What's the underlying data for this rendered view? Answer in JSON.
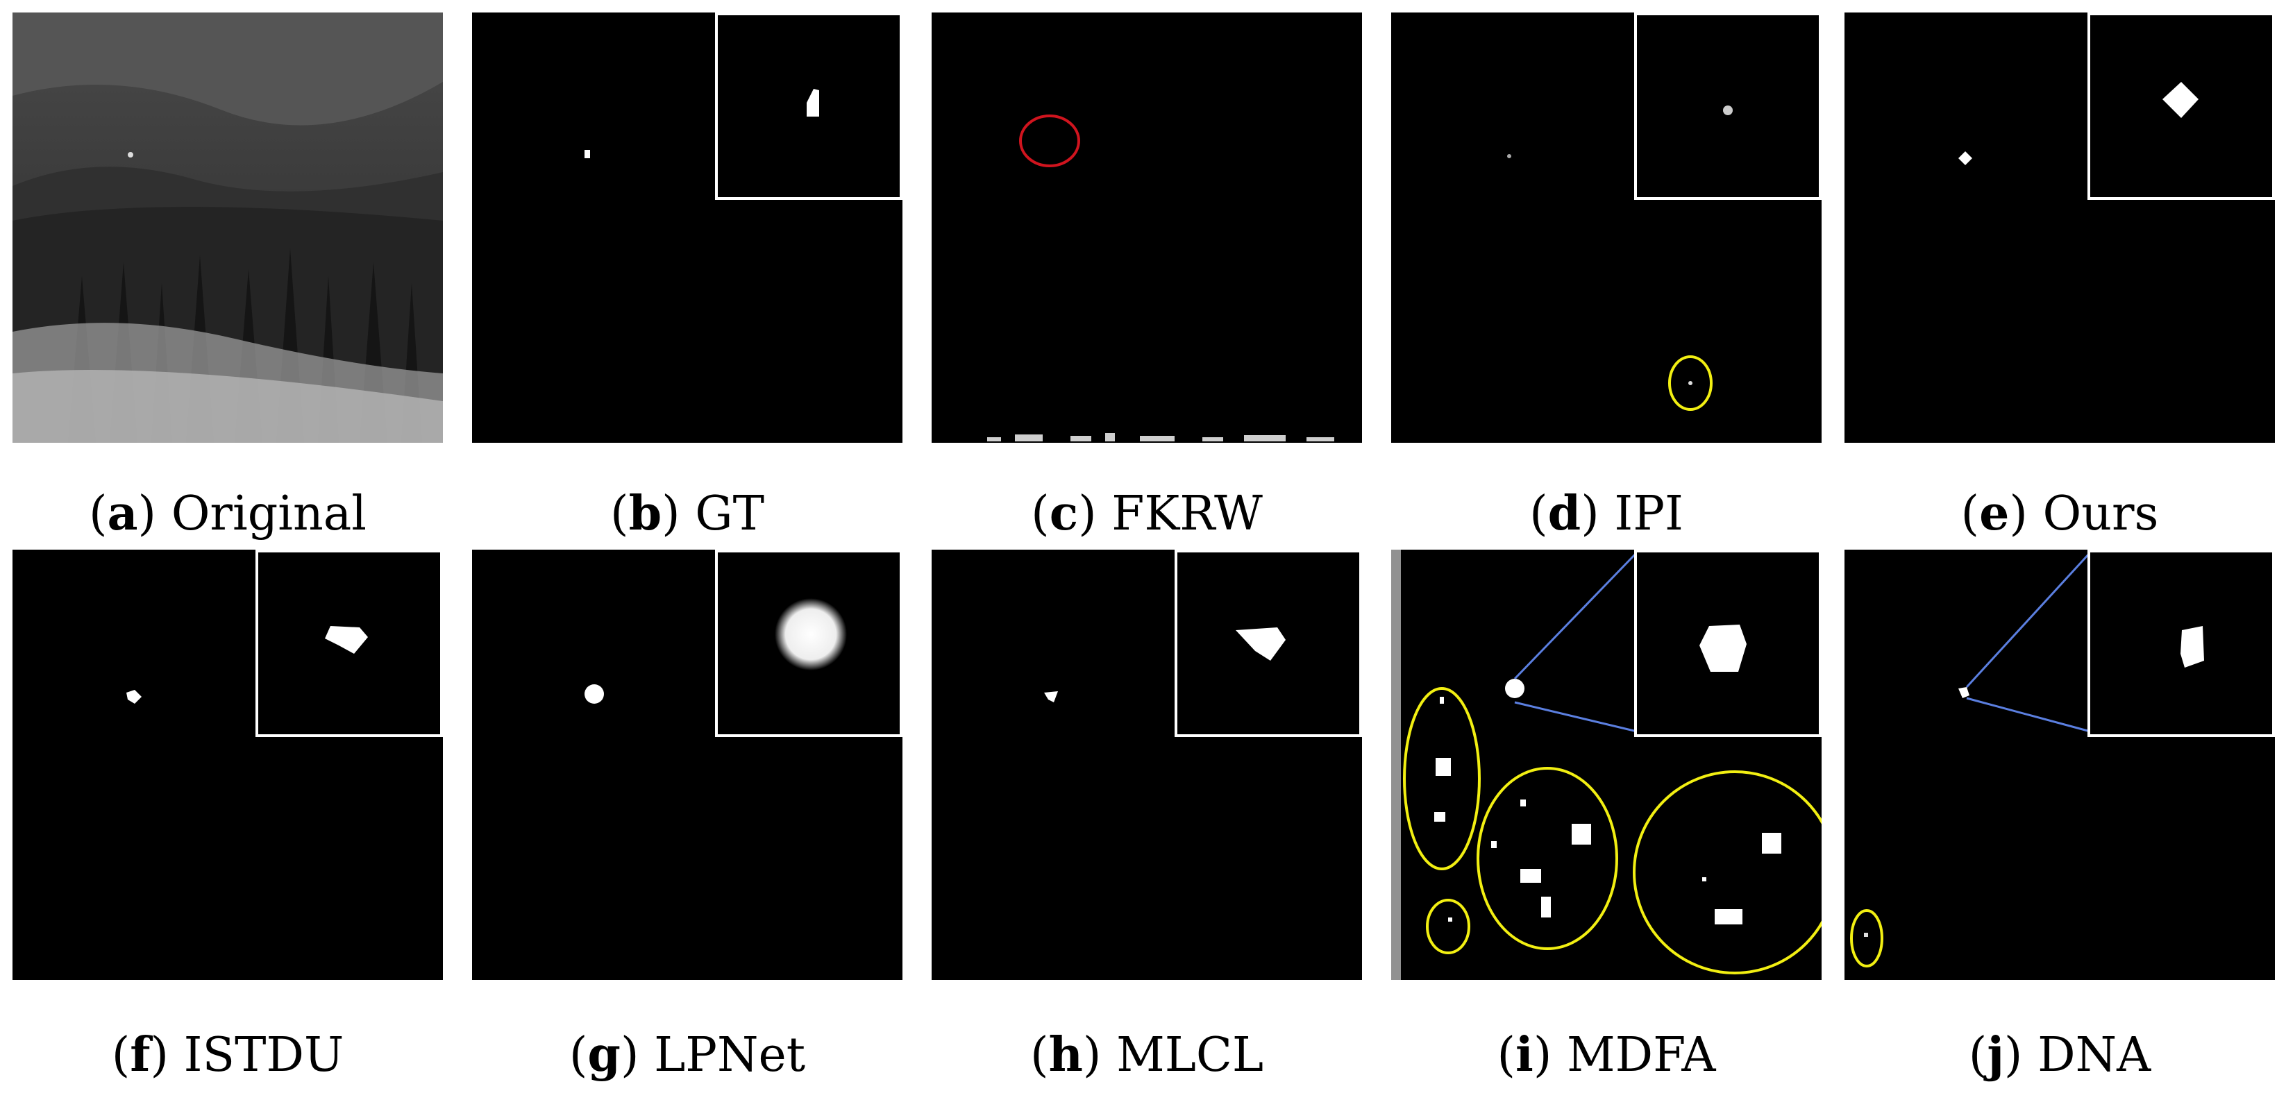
{
  "figure": {
    "panels": [
      {
        "letter": "a",
        "label": "Original"
      },
      {
        "letter": "b",
        "label": "GT"
      },
      {
        "letter": "c",
        "label": "FKRW"
      },
      {
        "letter": "d",
        "label": "IPI"
      },
      {
        "letter": "e",
        "label": "Ours"
      },
      {
        "letter": "f",
        "label": "ISTDU"
      },
      {
        "letter": "g",
        "label": "LPNet"
      },
      {
        "letter": "h",
        "label": "MLCL"
      },
      {
        "letter": "i",
        "label": "MDFA"
      },
      {
        "letter": "j",
        "label": "DNA"
      }
    ],
    "colors": {
      "background": "#000000",
      "target": "#ffffff",
      "inset_border": "#ffffff",
      "highlight_yellow": "#f2ef12",
      "highlight_red": "#d0141e",
      "zoom_lines": "#5b7fe0"
    }
  }
}
